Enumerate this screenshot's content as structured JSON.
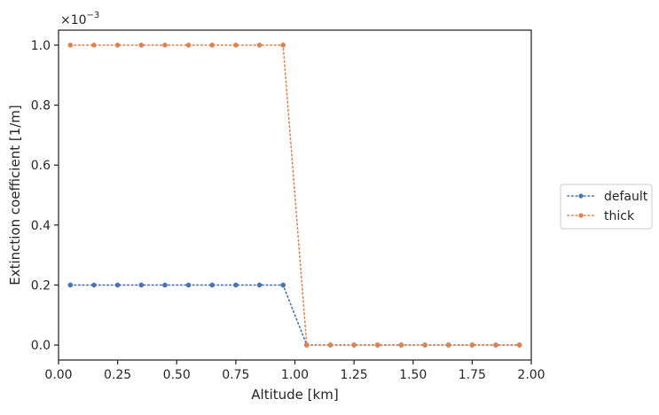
{
  "chart_data": {
    "type": "line",
    "xlabel": "Altitude [km]",
    "ylabel": "Extinction coefficient [1/m]",
    "y_offset_label": "×10",
    "y_offset_exponent": "−3",
    "xlim": [
      0.0,
      2.0
    ],
    "ylim": [
      -0.05,
      1.05
    ],
    "y_scale_factor": 0.001,
    "x_ticks": [
      0.0,
      0.25,
      0.5,
      0.75,
      1.0,
      1.25,
      1.5,
      1.75,
      2.0
    ],
    "x_tick_labels": [
      "0.00",
      "0.25",
      "0.50",
      "0.75",
      "1.00",
      "1.25",
      "1.50",
      "1.75",
      "2.00"
    ],
    "y_ticks": [
      0.0,
      0.2,
      0.4,
      0.6,
      0.8,
      1.0
    ],
    "y_tick_labels": [
      "0.0",
      "0.2",
      "0.4",
      "0.6",
      "0.8",
      "1.0"
    ],
    "grid": false,
    "legend_position": "outside-right",
    "x": [
      0.05,
      0.15,
      0.25,
      0.35,
      0.45,
      0.55,
      0.65,
      0.75,
      0.85,
      0.95,
      1.05,
      1.15,
      1.25,
      1.35,
      1.45,
      1.55,
      1.65,
      1.75,
      1.85,
      1.95
    ],
    "series": [
      {
        "name": "default",
        "color": "#4c72b0",
        "values": [
          0.2,
          0.2,
          0.2,
          0.2,
          0.2,
          0.2,
          0.2,
          0.2,
          0.2,
          0.2,
          0.0,
          0.0,
          0.0,
          0.0,
          0.0,
          0.0,
          0.0,
          0.0,
          0.0,
          0.0
        ]
      },
      {
        "name": "thick",
        "color": "#dd8452",
        "values": [
          1.0,
          1.0,
          1.0,
          1.0,
          1.0,
          1.0,
          1.0,
          1.0,
          1.0,
          1.0,
          0.0,
          0.0,
          0.0,
          0.0,
          0.0,
          0.0,
          0.0,
          0.0,
          0.0,
          0.0
        ]
      }
    ]
  }
}
